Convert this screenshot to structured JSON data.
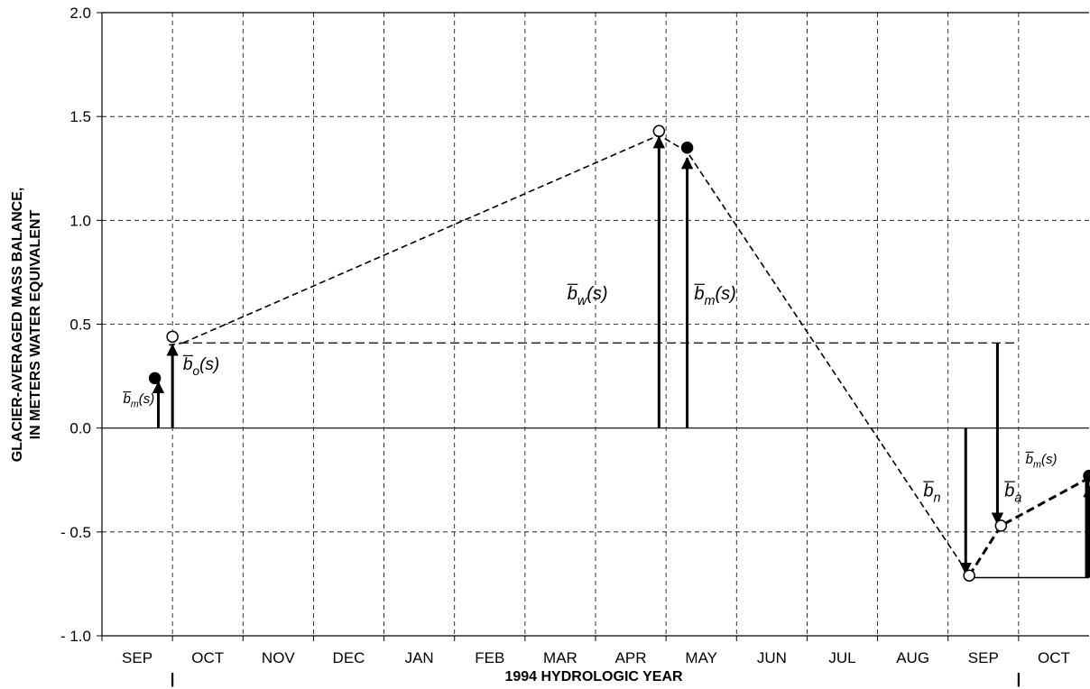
{
  "chart_data": {
    "type": "line",
    "title": "",
    "xlabel": "1994 HYDROLOGIC YEAR",
    "ylabel_line1": "GLACIER-AVERAGED MASS BALANCE,",
    "ylabel_line2": "IN METERS WATER EQUIVALENT",
    "ylim": [
      -1.0,
      2.0
    ],
    "y_ticks": [
      {
        "value": 2.0,
        "label": "2.0"
      },
      {
        "value": 1.5,
        "label": "1.5"
      },
      {
        "value": 1.0,
        "label": "1.0"
      },
      {
        "value": 0.5,
        "label": "0.5"
      },
      {
        "value": 0.0,
        "label": "0.0"
      },
      {
        "value": -0.5,
        "label": "- 0.5"
      },
      {
        "value": -1.0,
        "label": "- 1.0"
      }
    ],
    "xlim": [
      0,
      14
    ],
    "months": [
      "SEP",
      "OCT",
      "NOV",
      "DEC",
      "JAN",
      "FEB",
      "MAR",
      "APR",
      "MAY",
      "JUN",
      "JUL",
      "AUG",
      "SEP",
      "OCT"
    ],
    "year_markers": [
      "|",
      "|"
    ],
    "grid": true,
    "main_curve": [
      {
        "x": 1.15,
        "y": 0.41
      },
      {
        "x": 7.9,
        "y": 1.41
      },
      {
        "x": 8.3,
        "y": 1.33
      },
      {
        "x": 12.3,
        "y": -0.71
      }
    ],
    "end_curve": [
      {
        "x": 12.3,
        "y": -0.71
      },
      {
        "x": 12.75,
        "y": -0.47
      },
      {
        "x": 14.0,
        "y": -0.24
      }
    ],
    "reference_line_y": 0.41,
    "points": [
      {
        "x": 0.75,
        "y": 0.24,
        "filled": true
      },
      {
        "x": 1.0,
        "y": 0.44,
        "filled": false
      },
      {
        "x": 7.9,
        "y": 1.43,
        "filled": false
      },
      {
        "x": 8.3,
        "y": 1.35,
        "filled": true
      },
      {
        "x": 12.3,
        "y": -0.71,
        "filled": false
      },
      {
        "x": 12.75,
        "y": -0.47,
        "filled": false
      },
      {
        "x": 14.0,
        "y": -0.23,
        "filled": true
      }
    ],
    "arrows": [
      {
        "x": 0.8,
        "from": 0.0,
        "to": 0.22
      },
      {
        "x": 1.0,
        "from": 0.0,
        "to": 0.4
      },
      {
        "x": 7.9,
        "from": 0.0,
        "to": 1.4
      },
      {
        "x": 8.3,
        "from": 0.0,
        "to": 1.3
      },
      {
        "x": 12.25,
        "from": 0.0,
        "to": -0.7
      },
      {
        "x": 12.7,
        "from": 0.41,
        "to": -0.46
      },
      {
        "x": 14.0,
        "from": -0.72,
        "to": -0.28
      }
    ],
    "annotations": [
      {
        "base": "b",
        "sub": "m",
        "suffix": "(s)",
        "x": 0.3,
        "y": 0.12,
        "size": 15
      },
      {
        "base": "b",
        "sub": "o",
        "suffix": "(s)",
        "x": 1.15,
        "y": 0.28,
        "size": 19
      },
      {
        "base": "b",
        "sub": "w",
        "suffix": "(s)",
        "x": 6.6,
        "y": 0.62,
        "size": 20
      },
      {
        "base": "b",
        "sub": "m",
        "suffix": "(s)",
        "x": 8.4,
        "y": 0.62,
        "size": 20
      },
      {
        "base": "b",
        "sub": "n",
        "suffix": "",
        "x": 11.65,
        "y": -0.33,
        "size": 20
      },
      {
        "base": "b",
        "sub": "a",
        "suffix": "",
        "x": 12.8,
        "y": -0.33,
        "size": 20
      },
      {
        "base": "b",
        "sub": "m",
        "suffix": "(s)",
        "x": 13.1,
        "y": -0.17,
        "size": 15
      }
    ]
  }
}
